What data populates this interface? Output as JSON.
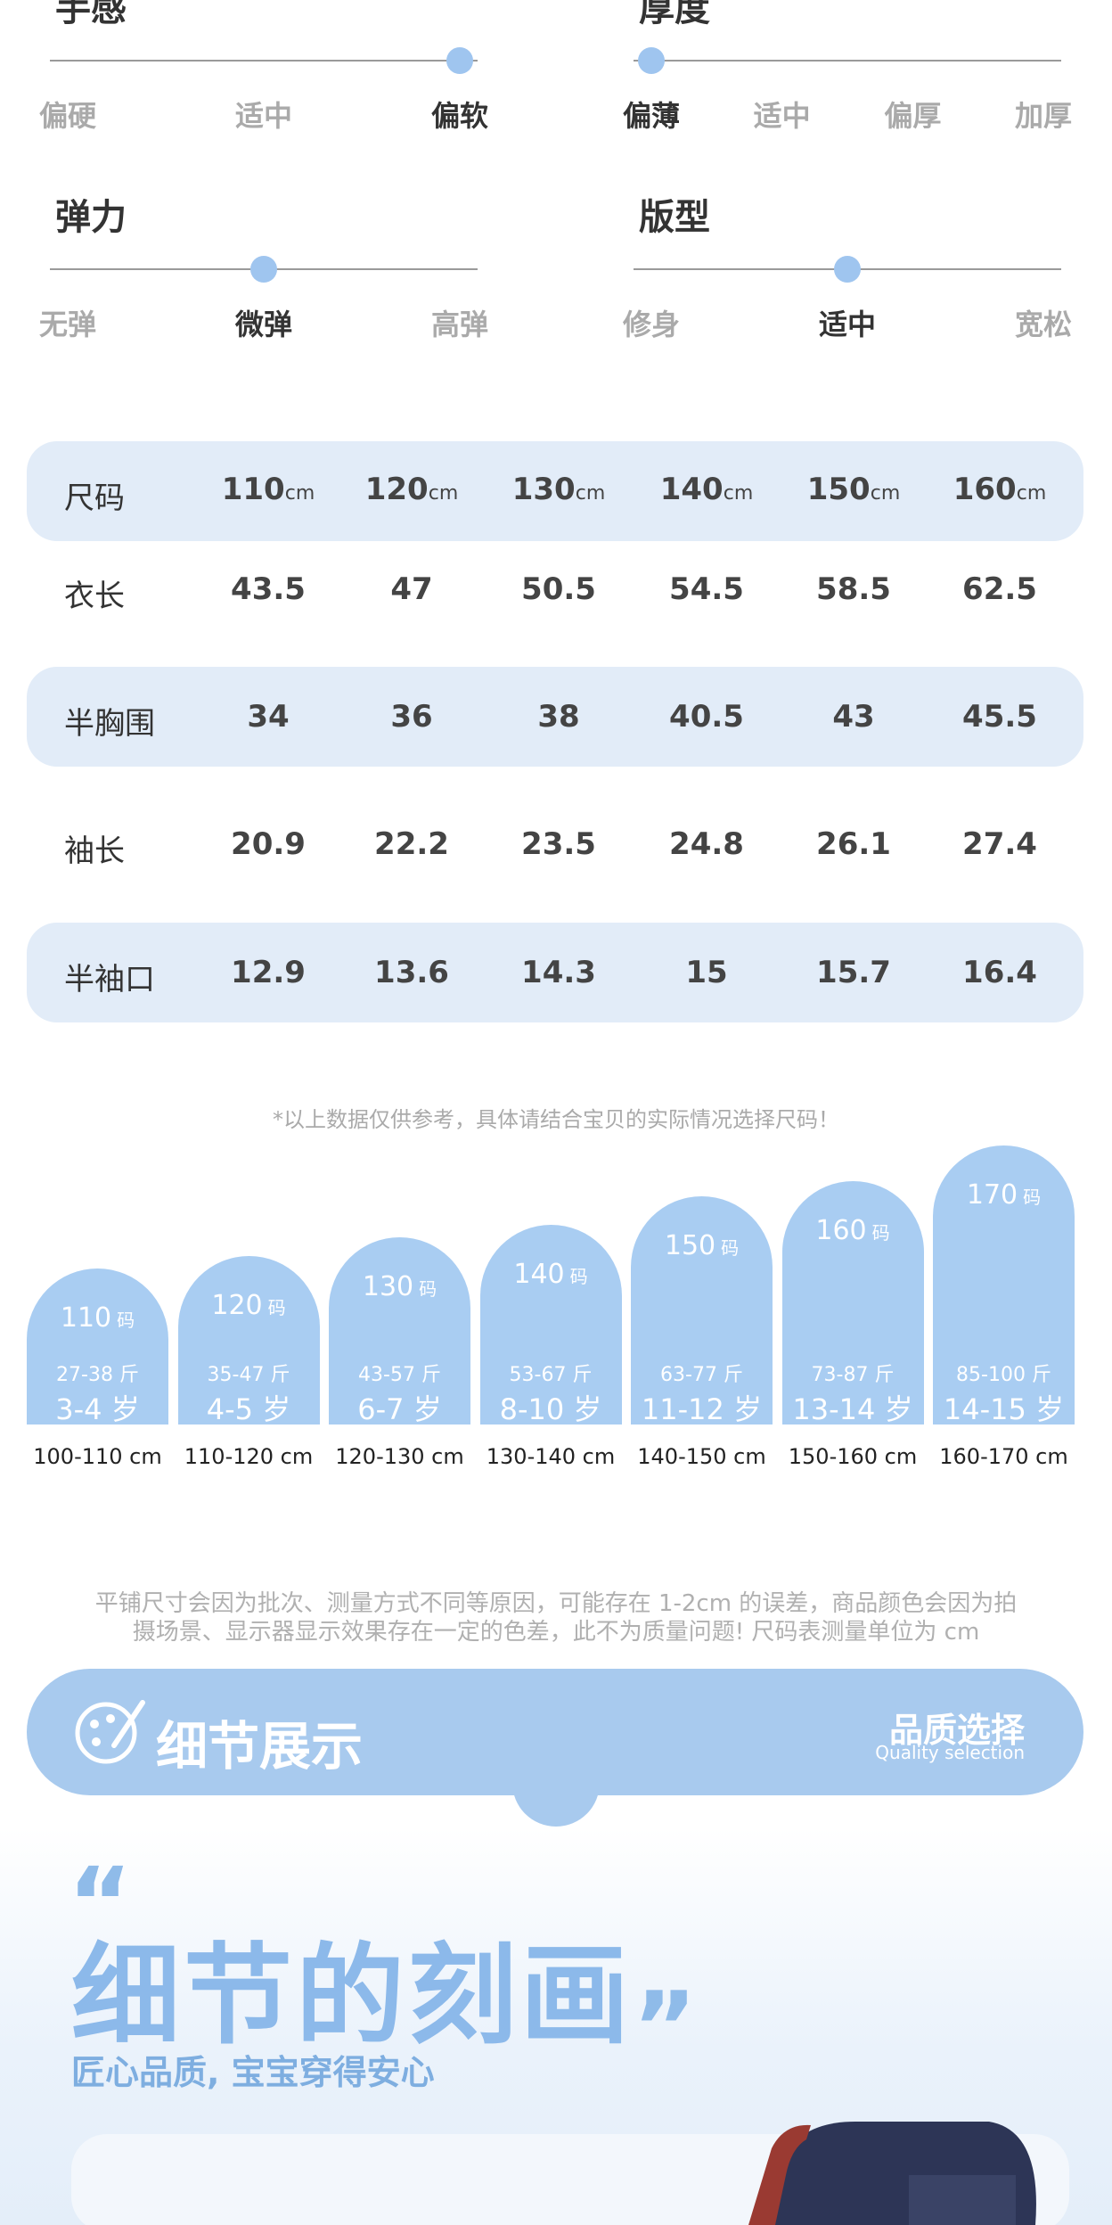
{
  "attributes": [
    {
      "label": "手感",
      "options": [
        "偏硬",
        "适中",
        "偏软"
      ],
      "selected": 2
    },
    {
      "label": "厚度",
      "options": [
        "偏薄",
        "适中",
        "偏厚",
        "加厚"
      ],
      "selected": 0
    },
    {
      "label": "弹力",
      "options": [
        "无弹",
        "微弹",
        "高弹"
      ],
      "selected": 1
    },
    {
      "label": "版型",
      "options": [
        "修身",
        "适中",
        "宽松"
      ],
      "selected": 1
    }
  ],
  "size_table": {
    "header_label": "尺码",
    "sizes": [
      "110",
      "120",
      "130",
      "140",
      "150",
      "160"
    ],
    "unit": "cm",
    "rows": [
      {
        "label": "衣长",
        "values": [
          43.5,
          47,
          50.5,
          54.5,
          58.5,
          62.5
        ]
      },
      {
        "label": "半胸围",
        "values": [
          34,
          36,
          38,
          40.5,
          43,
          45.5
        ]
      },
      {
        "label": "袖长",
        "values": [
          20.9,
          22.2,
          23.5,
          24.8,
          26.1,
          27.4
        ]
      },
      {
        "label": "半袖口",
        "values": [
          12.9,
          13.6,
          14.3,
          15,
          15.7,
          16.4
        ]
      }
    ]
  },
  "note": "*以上数据仅供参考，具体请结合宝贝的实际情况选择尺码！",
  "size_cards": {
    "code_unit": "码",
    "cards": [
      {
        "size": "110",
        "weight": "27-38 斤",
        "age": "3-4 岁",
        "height": "100-110 cm"
      },
      {
        "size": "120",
        "weight": "35-47 斤",
        "age": "4-5 岁",
        "height": "110-120 cm"
      },
      {
        "size": "130",
        "weight": "43-57 斤",
        "age": "6-7 岁",
        "height": "120-130 cm"
      },
      {
        "size": "140",
        "weight": "53-67 斤",
        "age": "8-10 岁",
        "height": "130-140 cm"
      },
      {
        "size": "150",
        "weight": "63-77 斤",
        "age": "11-12 岁",
        "height": "140-150 cm"
      },
      {
        "size": "160",
        "weight": "73-87 斤",
        "age": "13-14 岁",
        "height": "150-160 cm"
      },
      {
        "size": "170",
        "weight": "85-100 斤",
        "age": "14-15 岁",
        "height": "160-170 cm"
      }
    ]
  },
  "disclaimer": [
    "平铺尺寸会因为批次、测量方式不同等原因，可能存在 1-2cm 的误差，商品颜色会因为拍",
    "摄场景、显示器显示效果存在一定的色差，此不为质量问题! 尺码表测量单位为 cm"
  ],
  "banner": {
    "title": "细节展示",
    "right_title": "品质选择",
    "right_subtitle": "Quality selection"
  },
  "headline": "细节的刻画",
  "subheadline": "匠心品质, 宝宝穿得安心"
}
